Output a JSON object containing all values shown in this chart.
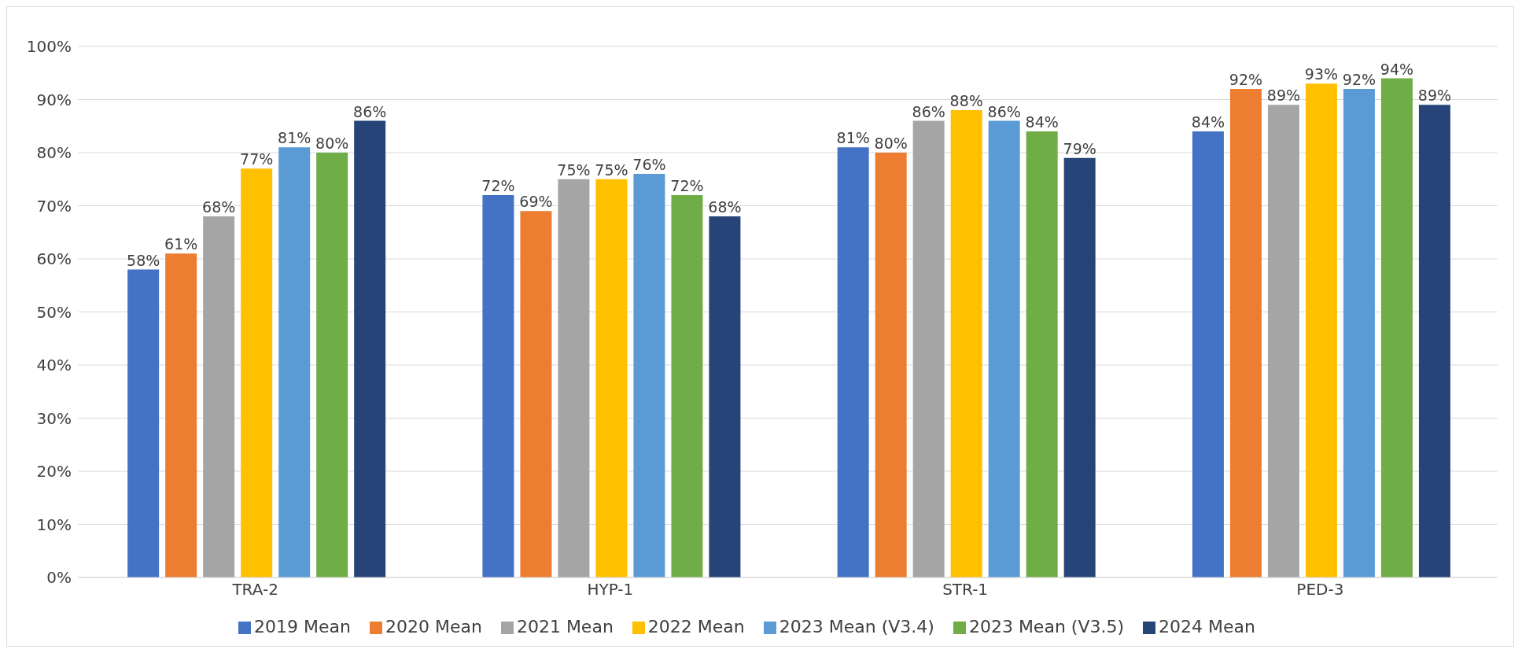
{
  "chart_data": {
    "type": "bar",
    "categories": [
      "TRA-2",
      "HYP-1",
      "STR-1",
      "PED-3"
    ],
    "series": [
      {
        "name": "2019 Mean",
        "color": "#4472c4",
        "values": [
          58,
          72,
          81,
          84
        ],
        "value_labels": [
          "58%",
          "72%",
          "81%",
          "84%"
        ]
      },
      {
        "name": "2020 Mean",
        "color": "#ed7d31",
        "values": [
          61,
          69,
          80,
          92
        ],
        "value_labels": [
          "61%",
          "69%",
          "80%",
          "92%"
        ]
      },
      {
        "name": "2021 Mean",
        "color": "#a5a5a5",
        "values": [
          68,
          75,
          86,
          89
        ],
        "value_labels": [
          "68%",
          "75%",
          "86%",
          "89%"
        ]
      },
      {
        "name": "2022 Mean",
        "color": "#ffc000",
        "values": [
          77,
          75,
          88,
          93
        ],
        "value_labels": [
          "77%",
          "75%",
          "88%",
          "93%"
        ]
      },
      {
        "name": "2023 Mean (V3.4)",
        "color": "#5b9bd5",
        "values": [
          81,
          76,
          86,
          92
        ],
        "value_labels": [
          "81%",
          "76%",
          "86%",
          "92%"
        ]
      },
      {
        "name": "2023 Mean (V3.5)",
        "color": "#70ad47",
        "values": [
          80,
          72,
          84,
          94
        ],
        "value_labels": [
          "80%",
          "72%",
          "84%",
          "94%"
        ]
      },
      {
        "name": "2024 Mean",
        "color": "#264478",
        "values": [
          86,
          68,
          79,
          89
        ],
        "value_labels": [
          "86%",
          "68%",
          "79%",
          "89%"
        ]
      }
    ],
    "ylim": [
      0,
      100
    ],
    "yticks": [
      {
        "value": 0,
        "label": "0%"
      },
      {
        "value": 10,
        "label": "10%"
      },
      {
        "value": 20,
        "label": "20%"
      },
      {
        "value": 30,
        "label": "30%"
      },
      {
        "value": 40,
        "label": "40%"
      },
      {
        "value": 50,
        "label": "50%"
      },
      {
        "value": 60,
        "label": "60%"
      },
      {
        "value": 70,
        "label": "70%"
      },
      {
        "value": 80,
        "label": "80%"
      },
      {
        "value": 90,
        "label": "90%"
      },
      {
        "value": 100,
        "label": "100%"
      }
    ],
    "grid": "y",
    "legend": "bottom"
  }
}
